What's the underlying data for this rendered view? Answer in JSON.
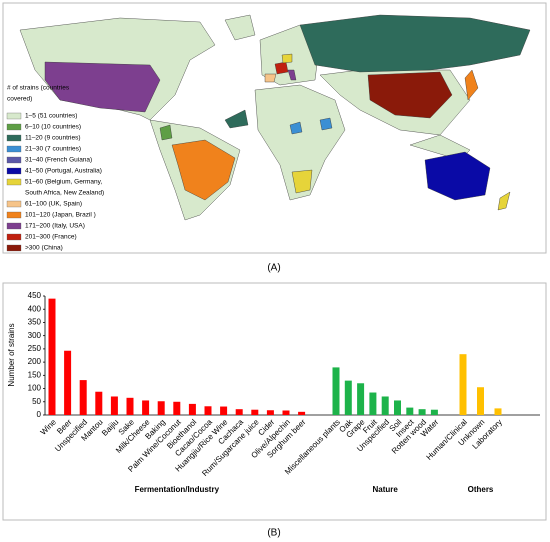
{
  "map": {
    "panel_label": "(A)",
    "legend_title": [
      "# of strains (countries",
      "covered)"
    ],
    "legend": [
      {
        "lines": [
          "1–5 (51 countries)"
        ],
        "color": "#d7e9cc"
      },
      {
        "lines": [
          "6–10 (10 countries)"
        ],
        "color": "#5e9e45"
      },
      {
        "lines": [
          "11–20 (9 countries)"
        ],
        "color": "#2e6b5b"
      },
      {
        "lines": [
          "21–30 (7 countries)"
        ],
        "color": "#3b8fd4"
      },
      {
        "lines": [
          "31–40 (French Guiana)"
        ],
        "color": "#5b58a8"
      },
      {
        "lines": [
          "41–50 (Portugal, Australia)"
        ],
        "color": "#0a0aa6"
      },
      {
        "lines": [
          "51–60 (Belgium, Germany,",
          "South Africa, New Zealand)"
        ],
        "color": "#e6d43a"
      },
      {
        "lines": [
          "61–100 (UK, Spain)"
        ],
        "color": "#f6c489"
      },
      {
        "lines": [
          "101–120 (Japan, Brazil )"
        ],
        "color": "#f0821c"
      },
      {
        "lines": [
          "171–200 (Italy, USA)"
        ],
        "color": "#7d3f8f"
      },
      {
        "lines": [
          "201–300 (France)"
        ],
        "color": "#c0200f"
      },
      {
        "lines": [
          ">300 (China)"
        ],
        "color": "#8a1a0a"
      }
    ]
  },
  "chart_data": {
    "type": "bar",
    "panel_label": "(B)",
    "y_label": "Number of strains",
    "ylim": [
      0,
      450
    ],
    "yticks": [
      0,
      50,
      100,
      150,
      200,
      250,
      300,
      350,
      400,
      450
    ],
    "groups": [
      {
        "name": "Fermentation/Industry",
        "color": "#ff0000",
        "categories": [
          "Wine",
          "Beer",
          "Unspecified",
          "Mantou",
          "Baijiu",
          "Sake",
          "Milk/Cheese",
          "Baking",
          "Palm Wine/Coconut",
          "Bioethanol",
          "Cacao/Cocoa",
          "Huangjiu/Rice Wine",
          "Cachaca",
          "Rum/Sugarcane juice",
          "Cider",
          "Olive/Alpechin",
          "Sorghum beer"
        ],
        "values": [
          440,
          243,
          132,
          88,
          70,
          65,
          55,
          52,
          50,
          42,
          33,
          32,
          22,
          20,
          18,
          17,
          12
        ]
      },
      {
        "name": "Nature",
        "color": "#1db34a",
        "categories": [
          "Miscellaneous plants",
          "Oak",
          "Grape",
          "Fruit",
          "Unspecified",
          "Soil",
          "Insect",
          "Rotten wood",
          "Water"
        ],
        "values": [
          180,
          130,
          120,
          85,
          70,
          55,
          28,
          22,
          20
        ]
      },
      {
        "name": "Others",
        "color": "#ffc000",
        "categories": [
          "Human/Clinical",
          "Unknown",
          "Laboratory"
        ],
        "values": [
          230,
          105,
          25
        ]
      }
    ]
  }
}
